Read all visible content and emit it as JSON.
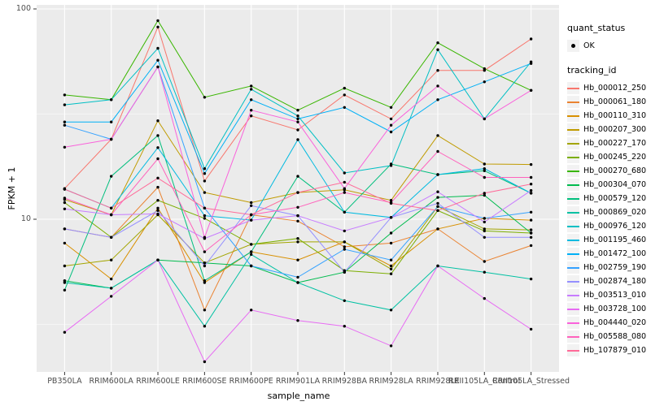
{
  "figure": {
    "y_axis": {
      "label": "FPKM + 1",
      "scale": "log10",
      "tick_labels": [
        "100",
        "10"
      ],
      "tick_values": [
        100,
        10
      ],
      "minor_tick_values": [
        31.623,
        3.1623
      ]
    },
    "x_axis": {
      "label": "sample_name"
    },
    "legend": {
      "quant_status": {
        "title": "quant_status",
        "items": [
          {
            "label": "OK",
            "symbol": "black-point"
          }
        ]
      },
      "tracking_id": {
        "title": "tracking_id"
      }
    }
  },
  "colors": {
    "panel_bg": "#ebebeb",
    "grid": "#ffffff",
    "legend_key_bg": "#f2f2f2",
    "tick_text": "#4d4d4d",
    "axis_text": "#000000",
    "point": "#000000"
  },
  "chart_data": {
    "type": "line",
    "title": "",
    "xlabel": "sample_name",
    "ylabel": "FPKM + 1",
    "y_scale": "log10",
    "ylim": [
      1.88,
      104
    ],
    "grid": true,
    "legend_position": "right",
    "point_color": "#000000",
    "categories": [
      "PB350LA",
      "RRIM600LA",
      "RRIM600LE",
      "RRIM600SE",
      "RRIM600PE",
      "RRIM901LA",
      "RRIM928BA",
      "RRIM928LA",
      "RRIM928LE",
      "RRII105LA_Control",
      "RRII105LA_Stressed"
    ],
    "series": [
      {
        "name": "Hb_000012_250",
        "color": "#F8766D",
        "values": [
          14,
          24,
          82,
          15.2,
          31,
          26.6,
          39,
          30,
          51,
          51,
          72
        ]
      },
      {
        "name": "Hb_000061_180",
        "color": "#EA8331",
        "values": [
          9,
          8.2,
          14.2,
          3.7,
          10.5,
          9.8,
          7.4,
          7.7,
          9,
          6.3,
          7.5
        ]
      },
      {
        "name": "Hb_000110_310",
        "color": "#D89000",
        "values": [
          7.7,
          5.2,
          11.3,
          5,
          7,
          6.4,
          7.8,
          6,
          9,
          10.1,
          9.9
        ]
      },
      {
        "name": "Hb_000207_300",
        "color": "#C09B00",
        "values": [
          12.4,
          10.5,
          29.4,
          13.4,
          12,
          13.4,
          13.8,
          12.3,
          25,
          18.3,
          18.2
        ]
      },
      {
        "name": "Hb_000227_170",
        "color": "#A3A500",
        "values": [
          6,
          6.4,
          10.5,
          6.2,
          7.6,
          7.8,
          7.8,
          5.8,
          11.5,
          9,
          8.9
        ]
      },
      {
        "name": "Hb_000245_220",
        "color": "#7CAE00",
        "values": [
          12,
          8.2,
          12.3,
          10.1,
          7.6,
          8.1,
          5.7,
          5.5,
          11,
          8.8,
          8.6
        ]
      },
      {
        "name": "Hb_000270_680",
        "color": "#39B600",
        "values": [
          39,
          37,
          88,
          38,
          43,
          33,
          42,
          34,
          69,
          52,
          41
        ]
      },
      {
        "name": "Hb_000304_070",
        "color": "#00BB4E",
        "values": [
          5.1,
          4.7,
          6.4,
          6.2,
          6,
          5,
          5.6,
          8.6,
          12.7,
          13,
          8.6
        ]
      },
      {
        "name": "Hb_000579_120",
        "color": "#00BF7D",
        "values": [
          4.6,
          16,
          25,
          5.1,
          7,
          16,
          10.8,
          18.3,
          16.3,
          17,
          13.3
        ]
      },
      {
        "name": "Hb_000869_020",
        "color": "#00C1A3",
        "values": [
          5,
          4.7,
          6.4,
          3.1,
          6.8,
          5,
          4.1,
          3.7,
          6,
          5.6,
          5.2
        ]
      },
      {
        "name": "Hb_000976_120",
        "color": "#00BFC4",
        "values": [
          35,
          37,
          65,
          17.4,
          41.5,
          31,
          16.6,
          18,
          64,
          30,
          56
        ]
      },
      {
        "name": "Hb_001195_460",
        "color": "#00BAE0",
        "values": [
          13.9,
          11.3,
          21.9,
          10.4,
          9.9,
          23.9,
          10.8,
          10.2,
          16.3,
          17.4,
          13.3
        ]
      },
      {
        "name": "Hb_001472_100",
        "color": "#00B0F6",
        "values": [
          29,
          29,
          57,
          16.5,
          37,
          30,
          34,
          26,
          37,
          45,
          55
        ]
      },
      {
        "name": "Hb_002759_190",
        "color": "#35A2FF",
        "values": [
          28,
          24,
          53,
          11.3,
          6,
          5.3,
          7.2,
          6.4,
          11.5,
          10.1,
          10.8
        ]
      },
      {
        "name": "Hb_002874_180",
        "color": "#9590FF",
        "values": [
          9,
          8.2,
          11,
          6,
          11.6,
          10.4,
          5.6,
          10.2,
          11.9,
          8.2,
          8.2
        ]
      },
      {
        "name": "Hb_003513_010",
        "color": "#C77CFF",
        "values": [
          11.2,
          10.5,
          10.6,
          8.1,
          9.9,
          10.4,
          8.8,
          10.2,
          13.5,
          9.7,
          13.7
        ]
      },
      {
        "name": "Hb_003728_100",
        "color": "#E76BF3",
        "values": [
          2.9,
          4.3,
          6.4,
          2.1,
          3.7,
          3.3,
          3.1,
          2.5,
          6,
          4.2,
          3
        ]
      },
      {
        "name": "Hb_004440_020",
        "color": "#FA62DB",
        "values": [
          22,
          24,
          53,
          8.2,
          33,
          29,
          14,
          28,
          43,
          30,
          41
        ]
      },
      {
        "name": "Hb_005588_080",
        "color": "#FF62BC",
        "values": [
          12.6,
          10.5,
          19.4,
          7,
          10.5,
          11.4,
          13.4,
          12,
          21,
          15.8,
          15.8
        ]
      },
      {
        "name": "Hb_107879_010",
        "color": "#FF6A98",
        "values": [
          13.9,
          11.3,
          15.7,
          11.3,
          10.5,
          13.4,
          15,
          11.9,
          11,
          13.3,
          14.7
        ]
      }
    ]
  }
}
